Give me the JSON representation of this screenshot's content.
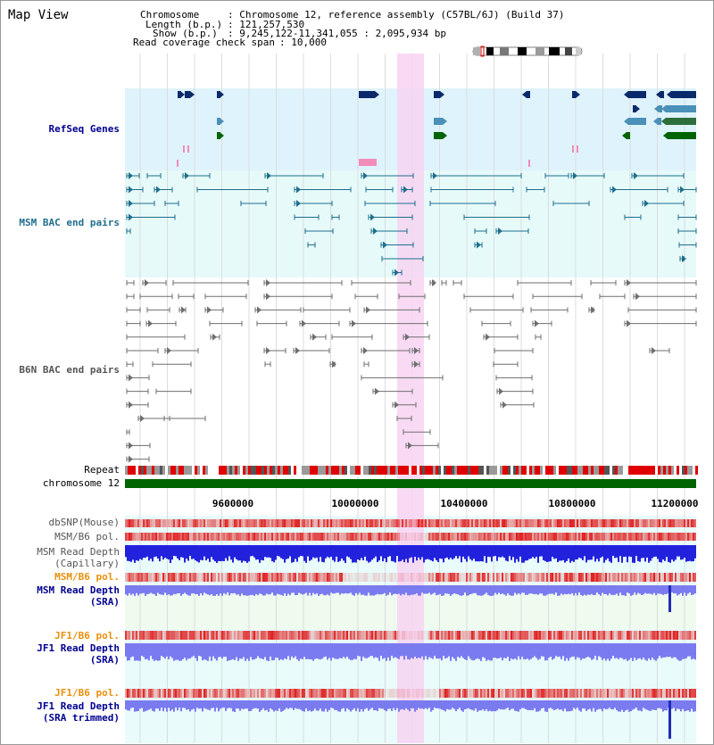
{
  "app": {
    "title": "Map View"
  },
  "header": {
    "chromosome_key": "Chromosome",
    "chromosome_value": ": Chromosome 12, reference assembly (C57BL/6J) (Build 37)",
    "length_key": "Length (b.p.)",
    "length_value": ": 121,257,530",
    "show_key": "Show (b.p.)",
    "show_value": ": 9,245,122-11,341,055 : 2,095,934 bp",
    "coverage_key": "Read coverage check span",
    "coverage_value": ": 10,000"
  },
  "tracks": {
    "refseq": "RefSeq Genes",
    "msm_bac": "MSM BAC end pairs",
    "b6n_bac": "B6N BAC end pairs",
    "repeat": "Repeat",
    "chromosome": "chromosome 12",
    "dbsnp": "dbSNP(Mouse)",
    "msm_b6_pol_1": "MSM/B6 pol.",
    "msm_read_depth_cap_1": "MSM Read Depth",
    "msm_read_depth_cap_2": "(Capillary)",
    "msm_b6_pol_2": "MSM/B6 pol.",
    "msm_read_depth_sra_1": "MSM Read Depth",
    "msm_read_depth_sra_2": "(SRA)",
    "jf1_b6_pol_1": "JF1/B6 pol.",
    "jf1_read_depth_sra_1": "JF1 Read Depth",
    "jf1_read_depth_sra_2": "(SRA)",
    "jf1_b6_pol_2": "JF1/B6 pol.",
    "jf1_read_depth_trim_1": "JF1 Read Depth",
    "jf1_read_depth_trim_2": "(SRA trimmed)"
  },
  "axis": {
    "ticks": [
      "9600000",
      "10000000",
      "10400000",
      "10800000",
      "11200000"
    ]
  },
  "colors": {
    "refseq_bg": "#dff3fc",
    "bac_bg": "#e6fafa",
    "highlight": "#f7d4f2",
    "gene_dark": "#0b2a6b",
    "gene_mid": "#4a90b8",
    "gene_green": "#006400",
    "msm_line": "#1f6e8c",
    "b6n_line": "#6e6e6e",
    "depth_blue": "#2222dd",
    "depth_light": "#7b7bf0",
    "pol_red": "#e02020",
    "label_blue": "#000090",
    "label_teal": "#1f6e8c",
    "label_gray": "#555555",
    "label_orange": "#e8900c"
  },
  "icons": {
    "chromosome_ideogram": "chromosome-ideogram-icon"
  }
}
